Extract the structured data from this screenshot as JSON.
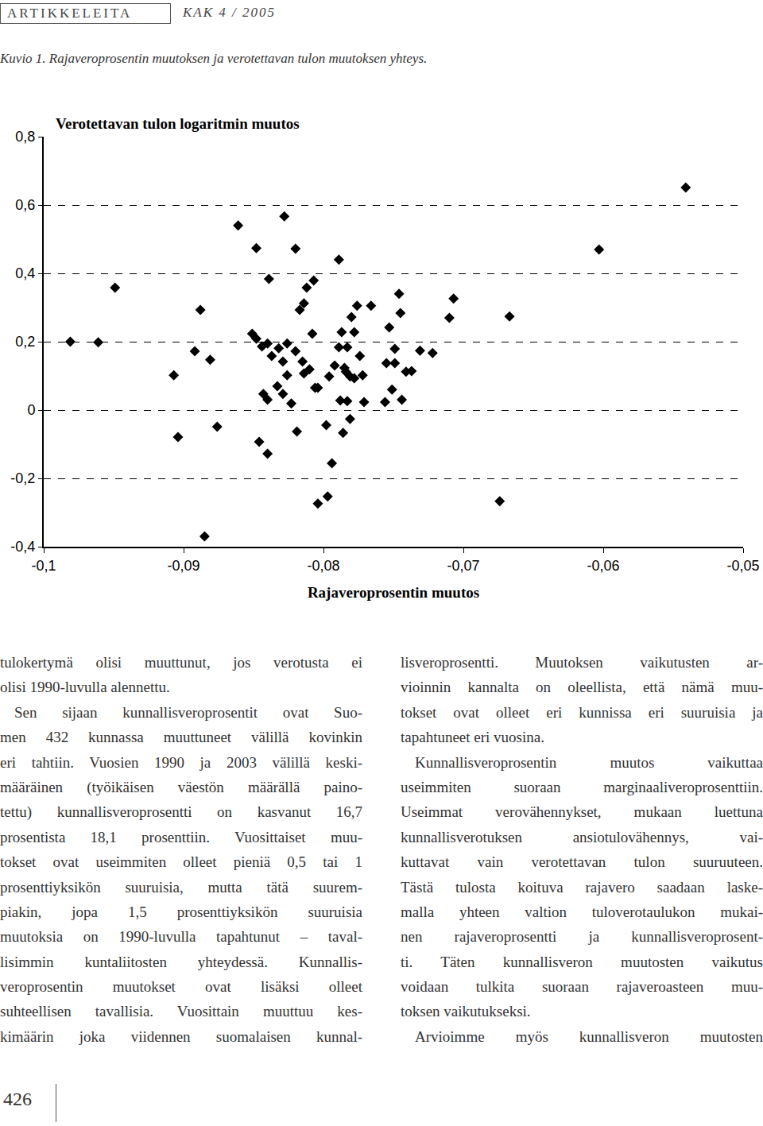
{
  "header": {
    "section": "ARTIKKELEITA",
    "issue": "KAK 4 / 2005"
  },
  "caption": "Kuvio 1. Rajaveroprosentin muutoksen ja verotettavan tulon muutoksen yhteys.",
  "chart_data": {
    "type": "scatter",
    "y_label": "Verotettavan tulon logaritmin muutos",
    "x_label": "Rajaveroprosentin muutos",
    "color": "#000000",
    "marker": "diamond",
    "grid": true,
    "xlim": [
      -0.1,
      -0.05
    ],
    "xticks": [
      {
        "value": -0.1,
        "label": "-0,1"
      },
      {
        "value": -0.09,
        "label": "-0,09"
      },
      {
        "value": -0.08,
        "label": "-0,08"
      },
      {
        "value": -0.07,
        "label": "-0,07"
      },
      {
        "value": -0.06,
        "label": "-0,06"
      },
      {
        "value": -0.05,
        "label": "-0,05"
      }
    ],
    "ylim": [
      -0.4,
      0.8
    ],
    "yticks": [
      {
        "value": -0.4,
        "label": "-0,4"
      },
      {
        "value": -0.2,
        "label": "-0,2"
      },
      0,
      {
        "value": 0.2,
        "label": "0,2"
      },
      {
        "value": 0.4,
        "label": "0,4"
      },
      {
        "value": 0.6,
        "label": "0,6"
      },
      {
        "value": 0.8,
        "label": "0,8"
      }
    ],
    "x": [
      -0.0981,
      -0.0961,
      -0.0949,
      -0.0907,
      -0.0904,
      -0.0892,
      -0.0888,
      -0.0881,
      -0.0885,
      -0.0876,
      -0.0861,
      -0.0848,
      -0.0839,
      -0.0828,
      -0.082,
      -0.0846,
      -0.084,
      -0.0851,
      -0.0848,
      -0.0844,
      -0.084,
      -0.0837,
      -0.0832,
      -0.0826,
      -0.0829,
      -0.0826,
      -0.0833,
      -0.0829,
      -0.0823,
      -0.0843,
      -0.084,
      -0.082,
      -0.0815,
      -0.0814,
      -0.081,
      -0.0817,
      -0.0814,
      -0.0812,
      -0.0807,
      -0.0808,
      -0.0806,
      -0.0804,
      -0.0819,
      -0.0798,
      -0.0804,
      -0.0797,
      -0.0794,
      -0.0796,
      -0.0792,
      -0.0789,
      -0.0787,
      -0.0789,
      -0.0788,
      -0.0786,
      -0.0785,
      -0.0783,
      -0.0784,
      -0.0781,
      -0.0783,
      -0.0781,
      -0.078,
      -0.0778,
      -0.0776,
      -0.0774,
      -0.0778,
      -0.0772,
      -0.0771,
      -0.0766,
      -0.0756,
      -0.0755,
      -0.0753,
      -0.0751,
      -0.0749,
      -0.0749,
      -0.0746,
      -0.0745,
      -0.0744,
      -0.0741,
      -0.0737,
      -0.0731,
      -0.0722,
      -0.071,
      -0.0707,
      -0.0667,
      -0.0674,
      -0.0603,
      -0.0541
    ],
    "y": [
      0.2,
      0.198,
      0.358,
      0.102,
      -0.079,
      0.172,
      0.293,
      0.147,
      -0.37,
      -0.049,
      0.54,
      0.474,
      0.384,
      0.567,
      0.472,
      -0.093,
      -0.128,
      0.223,
      0.209,
      0.186,
      0.195,
      0.158,
      0.181,
      0.195,
      0.142,
      0.102,
      0.07,
      0.047,
      0.019,
      0.047,
      0.03,
      0.172,
      0.142,
      0.107,
      0.119,
      0.293,
      0.312,
      0.358,
      0.379,
      0.223,
      0.065,
      0.065,
      -0.063,
      -0.044,
      -0.274,
      -0.253,
      -0.156,
      0.098,
      0.13,
      0.44,
      0.228,
      0.184,
      0.028,
      -0.067,
      0.123,
      0.184,
      0.112,
      0.098,
      0.026,
      -0.026,
      0.272,
      0.228,
      0.305,
      0.158,
      0.093,
      0.102,
      0.023,
      0.305,
      0.023,
      0.137,
      0.242,
      0.06,
      0.179,
      0.137,
      0.34,
      0.284,
      0.03,
      0.112,
      0.114,
      0.174,
      0.167,
      0.27,
      0.326,
      0.274,
      -0.267,
      0.47,
      0.651
    ]
  },
  "columns": [
    {
      "paragraphs": [
        {
          "indent": false,
          "lines": [
            "tulokertymä olisi muuttunut, jos verotusta ei",
            "olisi 1990-luvulla alennettu."
          ]
        },
        {
          "indent": true,
          "lines": [
            "Sen sijaan kunnallisveroprosentit ovat Suo-",
            "men 432 kunnassa muuttuneet välillä kovinkin",
            "eri tahtiin. Vuosien 1990 ja 2003 välillä keski-",
            "määräinen (työikäisen väestön määrällä paino-",
            "tettu) kunnallisveroprosentti on kasvanut 16,7",
            "prosentista 18,1 prosenttiin. Vuosittaiset muu-",
            "tokset ovat useimmiten olleet pieniä 0,5 tai 1",
            "prosenttiyksikön suuruisia, mutta tätä suurem-",
            "piakin, jopa 1,5 prosenttiyksikön suuruisia",
            "muutoksia on 1990-luvulla tapahtunut – taval-",
            "lisimmin kuntaliitosten yhteydessä. Kunnallis-",
            "veroprosentin muutokset ovat lisäksi olleet",
            "suhteellisen tavallisia. Vuosittain muuttuu kes-",
            "kimäärin joka viidennen suomalaisen kunnal-"
          ]
        }
      ]
    },
    {
      "paragraphs": [
        {
          "indent": false,
          "lines": [
            "lisveroprosentti. Muutoksen vaikutusten ar-",
            "vioinnin kannalta on oleellista, että nämä muu-",
            "tokset ovat olleet eri kunnissa eri suuruisia ja",
            "tapahtuneet eri vuosina."
          ]
        },
        {
          "indent": true,
          "lines": [
            "Kunnallisveroprosentin muutos vaikuttaa",
            "useimmiten suoraan marginaaliveroprosenttiin.",
            "Useimmat verovähennykset, mukaan luettuna",
            "kunnallisverotuksen ansiotulovähennys, vai-",
            "kuttavat vain verotettavan tulon suuruuteen.",
            "Tästä tulosta koituva rajavero saadaan laske-",
            "malla yhteen valtion tuloverotaulukon mukai-",
            "nen rajaveroprosentti ja kunnallisveroprosent-",
            "ti. Täten kunnallisveron muutosten vaikutus",
            "voidaan tulkita suoraan rajaveroasteen muu-",
            "toksen vaikutukseksi."
          ]
        },
        {
          "indent": true,
          "lines": [
            "Arvioimme myös kunnallisveron muutosten"
          ]
        }
      ]
    }
  ],
  "page_number": "426"
}
